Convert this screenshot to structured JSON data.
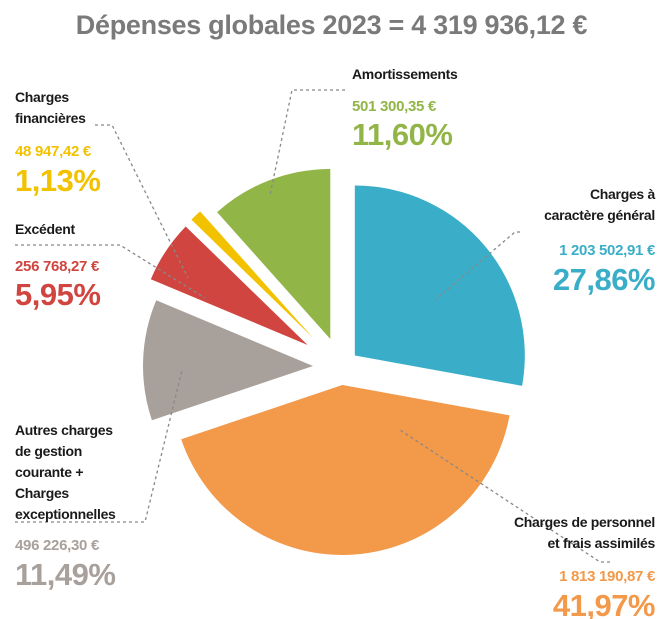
{
  "chart_data": {
    "type": "pie",
    "title": "Dépenses globales 2023 = 4 319 936,12 €",
    "categories": [
      "Charges à\ncaractère général",
      "Charges de personnel\net frais assimilés",
      "Autres charges\nde gestion\ncourante +\nCharges\nexceptionnelles",
      "Excédent",
      "Charges\nfinancières",
      "Amortissements"
    ],
    "values": [
      27.86,
      41.97,
      11.49,
      5.95,
      1.13,
      11.6
    ],
    "value_labels": [
      "27,86%",
      "41,97%",
      "11,49%",
      "5,95%",
      "1,13%",
      "11,60%"
    ],
    "amount_labels": [
      "1 203 502,91 €",
      "1 813 190,87 €",
      "496 226,30 €",
      "256 768,27 €",
      "48 947,42 €",
      "501 300,35 €"
    ],
    "colors": [
      "#3aaec8",
      "#f2994a",
      "#a8a09b",
      "#d0453f",
      "#f2c200",
      "#92b548"
    ]
  }
}
